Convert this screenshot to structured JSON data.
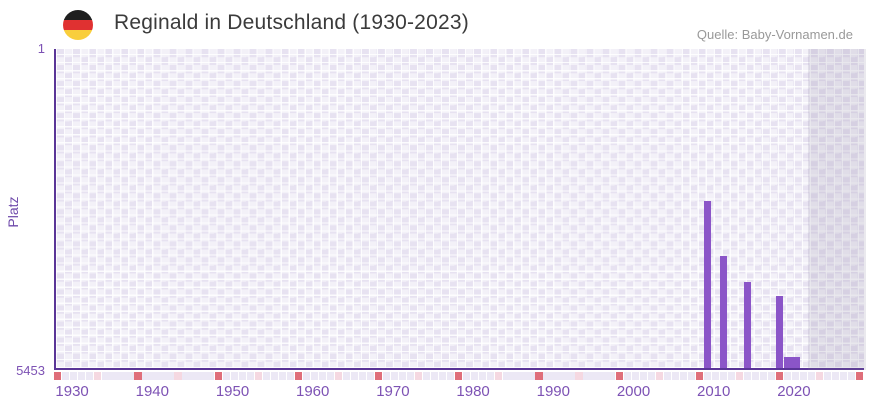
{
  "header": {
    "title": "Reginald in Deutschland (1930-2023)",
    "source": "Quelle: Baby-Vornamen.de",
    "flag_icon": "german-flag-icon"
  },
  "chart_data": {
    "type": "bar",
    "title": "Reginald in Deutschland (1930-2023)",
    "xlabel": "",
    "ylabel": "Platz",
    "y_axis": {
      "top_tick": "1",
      "bottom_tick": "5453",
      "min": 1,
      "max": 5453,
      "inverted": true
    },
    "x_axis": {
      "plot_start_year": 1930,
      "plot_end_year": 2030,
      "data_start_year": 1930,
      "data_end_year": 2023,
      "future_start_year": 2024,
      "tick_years": [
        1930,
        1940,
        1950,
        1960,
        1970,
        1980,
        1990,
        2000,
        2010,
        2020
      ]
    },
    "series": [
      {
        "name": "Platz",
        "points": [
          {
            "year": 2011,
            "rank": 2610
          },
          {
            "year": 2013,
            "rank": 3550
          },
          {
            "year": 2016,
            "rank": 3990
          },
          {
            "year": 2020,
            "rank": 4230
          },
          {
            "year": 2021,
            "rank": 5265
          },
          {
            "year": 2022,
            "rank": 5265
          }
        ]
      }
    ],
    "axis_strip": {
      "decade_years": [
        1930,
        1940,
        1950,
        1960,
        1970,
        1980,
        1990,
        2000,
        2010,
        2020,
        2030
      ],
      "half_decade_years": [
        1935,
        1945,
        1955,
        1965,
        1975,
        1985,
        1995,
        2005,
        2015,
        2025
      ]
    },
    "legend": null,
    "grid": true
  },
  "colors": {
    "bar": "#8b55c8",
    "axis": "#5a3597",
    "tick_label": "#7d52b4",
    "axis_label": "#6f4aab",
    "title": "#3b3b3b",
    "source": "#999999",
    "cell_base": "#e7e2f1",
    "cell_checker": "rgba(255,255,255,0.5)",
    "grid_line": "rgba(255,255,255,0.85)",
    "future_overlay": "rgba(122,118,148,0.16)",
    "strip_cell": "#ece8f5",
    "strip_decade": "#df6e7a",
    "strip_half_decade": "#f5d8e1",
    "flag_black": "#1f1f1f",
    "flag_red": "#e03131",
    "flag_gold": "#f9ce3c"
  }
}
